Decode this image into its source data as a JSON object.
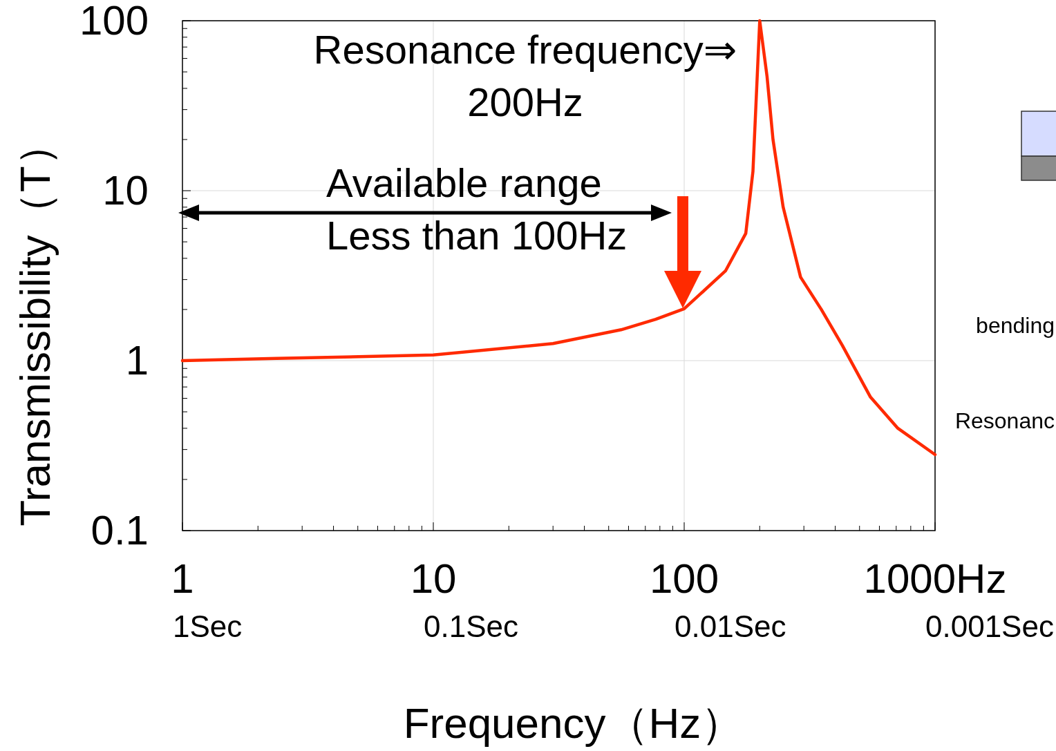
{
  "chart_data": {
    "type": "line",
    "xlabel": "Frequency（Hz）",
    "ylabel": "Transmissibility（T）",
    "log": "xy",
    "grid": true,
    "marker": "none",
    "line_style": "solid",
    "xlim": [
      1,
      1000
    ],
    "ylim": [
      0.1,
      100
    ],
    "xticks": [
      1,
      10,
      100,
      {
        "value": 1000,
        "label": "1000Hz"
      }
    ],
    "yticks": [
      0.1,
      1,
      10,
      100
    ],
    "series": [
      {
        "color": "#ff2a00",
        "x": [
          1,
          2.37,
          10,
          30,
          56,
          77,
          100,
          146,
          176,
          188,
          200,
          214,
          226,
          248,
          291,
          352,
          427,
          553,
          711,
          1000
        ],
        "values": [
          1.0,
          1.03,
          1.08,
          1.26,
          1.52,
          1.75,
          2.02,
          3.37,
          5.6,
          13,
          100,
          47,
          20,
          8,
          3.1,
          2.0,
          1.23,
          0.61,
          0.4,
          0.28
        ]
      }
    ],
    "annotations": [
      "Resonance frequency⇒\n200Hz",
      "Available range\nLess than 100Hz",
      "1Sec",
      "0.1Sec",
      "0.01Sec",
      "0.001Sec",
      "bending",
      "Resonanc"
    ]
  }
}
